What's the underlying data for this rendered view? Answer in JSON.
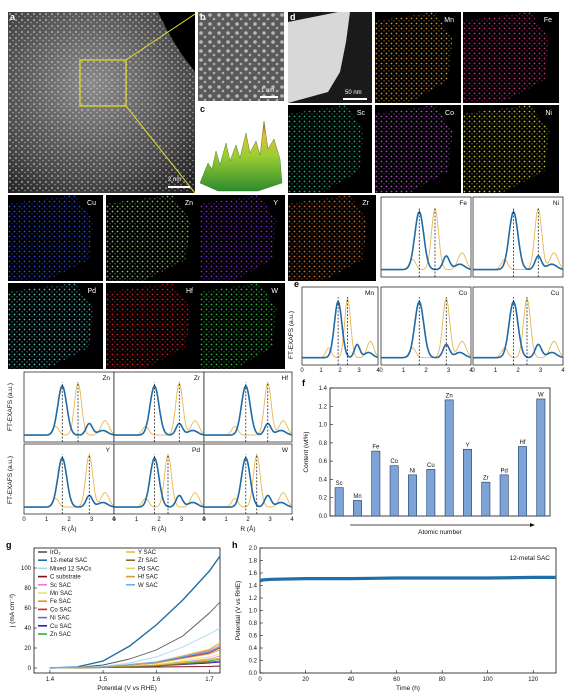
{
  "panels": {
    "a": {
      "letter": "a",
      "scale": "2 nm"
    },
    "b": {
      "letter": "b",
      "scale": "1 nm"
    },
    "c": {
      "letter": "c"
    },
    "d": {
      "letter": "d",
      "scale": "50 nm"
    },
    "e": {
      "letter": "e"
    },
    "f": {
      "letter": "f"
    },
    "g": {
      "letter": "g"
    },
    "h": {
      "letter": "h"
    }
  },
  "eds_maps": [
    {
      "label": "Mn",
      "color": "#e3a13a"
    },
    {
      "label": "Fe",
      "color": "#e02f86"
    },
    {
      "label": "Sc",
      "color": "#1fc28a"
    },
    {
      "label": "Co",
      "color": "#c05ad6"
    },
    {
      "label": "Ni",
      "color": "#d8d52a"
    },
    {
      "label": "Cu",
      "color": "#2b52f0"
    },
    {
      "label": "Zn",
      "color": "#9ad08a"
    },
    {
      "label": "Y",
      "color": "#8a2ef0"
    },
    {
      "label": "Zr",
      "color": "#e0782a"
    },
    {
      "label": "Pd",
      "color": "#4fd4cf"
    },
    {
      "label": "Hf",
      "color": "#e8201f"
    },
    {
      "label": "W",
      "color": "#28d23a"
    }
  ],
  "exafs": {
    "ylabel": "FT-EXAFS (a.u.)",
    "xlabel": "R (Å)",
    "xticks": [
      "0",
      "1",
      "2",
      "3",
      "4"
    ],
    "right_block": [
      "Fe",
      "Ni",
      "Mn",
      "Co",
      "Cu"
    ],
    "bottom_block": [
      "Zn",
      "Zr",
      "Hf",
      "Y",
      "Pd",
      "W"
    ],
    "colors": {
      "sample": "#1f6aa5",
      "foil": "#e8b84f"
    }
  },
  "chart_data": [
    {
      "type": "bar",
      "panel": "f",
      "categories": [
        "Sc",
        "Mn",
        "Fe",
        "Co",
        "Ni",
        "Cu",
        "Zn",
        "Y",
        "Zr",
        "Pd",
        "Hf",
        "W"
      ],
      "values": [
        0.31,
        0.17,
        0.71,
        0.55,
        0.45,
        0.51,
        1.27,
        0.73,
        0.37,
        0.45,
        0.76,
        1.28
      ],
      "xlabel": "Atomic number",
      "ylabel": "Content (wt%)",
      "ylim": [
        0.0,
        1.4
      ],
      "yticks": [
        "0.0",
        "0.2",
        "0.4",
        "0.6",
        "0.8",
        "1.0",
        "1.2",
        "1.4"
      ],
      "color": "#7ea3d6"
    },
    {
      "type": "line",
      "panel": "g",
      "xlabel": "Potential (V vs RHE)",
      "ylabel": "j (mA cm⁻²)",
      "xlim": [
        1.37,
        1.72
      ],
      "ylim": [
        -5,
        120
      ],
      "xticks": [
        "1.4",
        "1.5",
        "1.6",
        "1.7"
      ],
      "yticks": [
        "0",
        "20",
        "40",
        "60",
        "80",
        "100"
      ],
      "series": [
        {
          "name": "IrO₂",
          "color": "#555555",
          "x": [
            1.4,
            1.45,
            1.5,
            1.55,
            1.6,
            1.65,
            1.7,
            1.72
          ],
          "y": [
            0,
            0.5,
            3,
            9,
            18,
            32,
            55,
            66
          ]
        },
        {
          "name": "12-metal SAC",
          "color": "#1f6ea8",
          "x": [
            1.4,
            1.45,
            1.5,
            1.55,
            1.6,
            1.65,
            1.7,
            1.72
          ],
          "y": [
            0,
            1,
            7,
            22,
            43,
            68,
            97,
            112
          ]
        },
        {
          "name": "Mixed 12 SACs",
          "color": "#a8d8ee",
          "x": [
            1.4,
            1.5,
            1.55,
            1.6,
            1.65,
            1.7,
            1.72
          ],
          "y": [
            0,
            1.5,
            5,
            11,
            21,
            34,
            40
          ]
        },
        {
          "name": "C substrate",
          "color": "#7a1020",
          "x": [
            1.4,
            1.5,
            1.6,
            1.7,
            1.72
          ],
          "y": [
            0,
            0.5,
            1,
            1.5,
            2
          ]
        },
        {
          "name": "Sc SAC",
          "color": "#e080e0",
          "x": [
            1.4,
            1.5,
            1.6,
            1.7,
            1.72
          ],
          "y": [
            0,
            0.5,
            3,
            9,
            12
          ]
        },
        {
          "name": "Mn SAC",
          "color": "#f0e070",
          "x": [
            1.4,
            1.5,
            1.6,
            1.7,
            1.72
          ],
          "y": [
            0,
            0.5,
            3.5,
            11,
            14
          ]
        },
        {
          "name": "Fe SAC",
          "color": "#f08a30",
          "x": [
            1.4,
            1.5,
            1.6,
            1.7,
            1.72
          ],
          "y": [
            0,
            1,
            6,
            18,
            24
          ]
        },
        {
          "name": "Co SAC",
          "color": "#e02020",
          "x": [
            1.4,
            1.5,
            1.6,
            1.7,
            1.72
          ],
          "y": [
            0,
            1,
            5,
            15,
            20
          ]
        },
        {
          "name": "Ni SAC",
          "color": "#6a6ad8",
          "x": [
            1.4,
            1.5,
            1.6,
            1.7,
            1.72
          ],
          "y": [
            0,
            1,
            5.5,
            16,
            21
          ]
        },
        {
          "name": "Cu SAC",
          "color": "#1a2ab0",
          "x": [
            1.4,
            1.5,
            1.6,
            1.7,
            1.72
          ],
          "y": [
            0,
            0.5,
            2,
            5,
            6
          ]
        },
        {
          "name": "Zn SAC",
          "color": "#30b040",
          "x": [
            1.4,
            1.5,
            1.6,
            1.7,
            1.72
          ],
          "y": [
            0,
            0.5,
            2.5,
            7,
            9
          ]
        },
        {
          "name": "Y SAC",
          "color": "#e6c23a",
          "x": [
            1.4,
            1.5,
            1.6,
            1.7,
            1.72
          ],
          "y": [
            0,
            0.5,
            3,
            8,
            10
          ]
        },
        {
          "name": "Zr SAC",
          "color": "#8a6a2a",
          "x": [
            1.4,
            1.5,
            1.6,
            1.7,
            1.72
          ],
          "y": [
            0,
            0.5,
            2,
            6,
            7
          ]
        },
        {
          "name": "Pd SAC",
          "color": "#e8d06a",
          "x": [
            1.4,
            1.5,
            1.6,
            1.7,
            1.72
          ],
          "y": [
            0,
            1,
            6,
            19,
            26
          ]
        },
        {
          "name": "Hf SAC",
          "color": "#d89a3a",
          "x": [
            1.4,
            1.5,
            1.6,
            1.7,
            1.72
          ],
          "y": [
            0,
            1,
            5,
            14,
            18
          ]
        },
        {
          "name": "W SAC",
          "color": "#70b0e0",
          "x": [
            1.4,
            1.5,
            1.6,
            1.7,
            1.72
          ],
          "y": [
            0,
            1,
            6,
            17,
            22
          ]
        }
      ]
    },
    {
      "type": "line",
      "panel": "h",
      "xlabel": "Time (h)",
      "ylabel": "Potential (V vs RHE)",
      "xlim": [
        0,
        130
      ],
      "ylim": [
        0,
        2.0
      ],
      "xticks": [
        "0",
        "20",
        "40",
        "60",
        "80",
        "100",
        "120"
      ],
      "yticks": [
        "0.0",
        "0.2",
        "0.4",
        "0.6",
        "0.8",
        "1.0",
        "1.2",
        "1.4",
        "1.6",
        "1.8",
        "2.0"
      ],
      "series": [
        {
          "name": "12-metal SAC",
          "color": "#1f6ea8",
          "x": [
            0,
            1,
            5,
            20,
            40,
            60,
            80,
            100,
            120,
            130
          ],
          "y": [
            1.47,
            1.49,
            1.5,
            1.51,
            1.51,
            1.52,
            1.52,
            1.52,
            1.53,
            1.53
          ]
        }
      ]
    }
  ]
}
